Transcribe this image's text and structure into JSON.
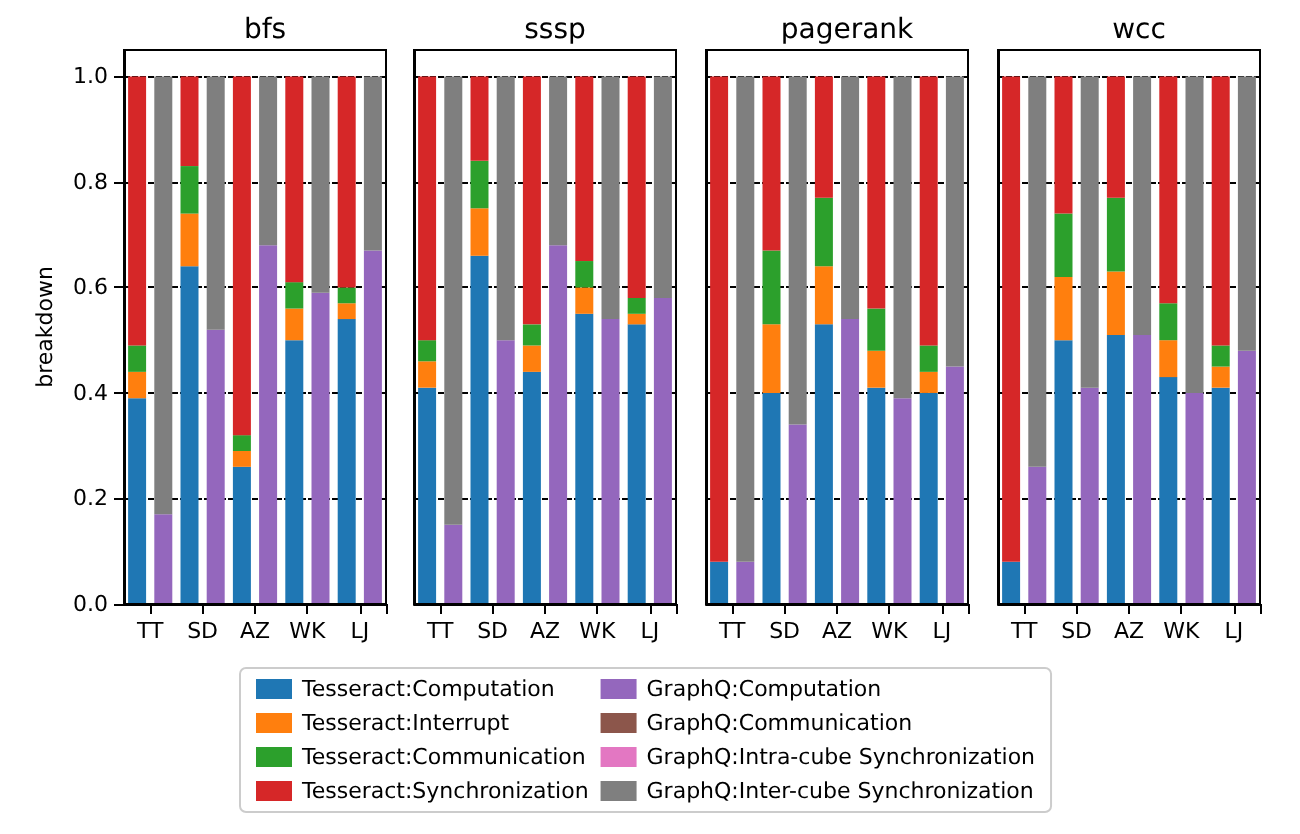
{
  "chart_data": [
    {
      "type": "bar",
      "title": "bfs",
      "ylabel": "breakdown",
      "stacked": true,
      "categories": [
        "TT",
        null,
        "SD",
        null,
        "AZ",
        null,
        "WK",
        null,
        "LJ",
        null
      ],
      "ylim": [
        0,
        1.05
      ],
      "yticks": [
        {
          "value": 0,
          "label": "0.0"
        },
        {
          "value": 0.2,
          "label": "0.2"
        },
        {
          "value": 0.4,
          "label": "0.4"
        },
        {
          "value": 0.6,
          "label": "0.6"
        },
        {
          "value": 0.8,
          "label": "0.8"
        },
        {
          "value": 1,
          "label": "1.0"
        }
      ],
      "grid": "y",
      "legend": "bottom",
      "series": [
        {
          "name": "Tesseract:Computation",
          "color": "#1f77b4",
          "values": [
            0.39,
            null,
            0.64,
            null,
            0.26,
            null,
            0.5,
            null,
            0.54,
            null
          ]
        },
        {
          "name": "Tesseract:Interrupt",
          "color": "#ff7f0e",
          "values": [
            0.05,
            null,
            0.1,
            null,
            0.03,
            null,
            0.06,
            null,
            0.03,
            null
          ]
        },
        {
          "name": "Tesseract:Communication",
          "color": "#2ca02c",
          "values": [
            0.05,
            null,
            0.09,
            null,
            0.03,
            null,
            0.05,
            null,
            0.03,
            null
          ]
        },
        {
          "name": "Tesseract:Synchronization",
          "color": "#d62728",
          "values": [
            0.51,
            null,
            0.17,
            null,
            0.68,
            null,
            0.39,
            null,
            0.4,
            null
          ]
        },
        {
          "name": "GraphQ:Computation",
          "color": "#9467bd",
          "values": [
            null,
            0.17,
            null,
            0.52,
            null,
            0.68,
            null,
            0.59,
            null,
            0.67
          ]
        },
        {
          "name": "GraphQ:Communication",
          "color": "#8c564b",
          "values": [
            null,
            0,
            null,
            0,
            null,
            0,
            null,
            0,
            null,
            0
          ]
        },
        {
          "name": "GraphQ:Intra-cube Synchronization",
          "color": "#e377c2",
          "values": [
            null,
            0,
            null,
            0,
            null,
            0,
            null,
            0,
            null,
            0
          ]
        },
        {
          "name": "GraphQ:Inter-cube Synchronization",
          "color": "#7f7f7f",
          "values": [
            null,
            0.83,
            null,
            0.48,
            null,
            0.32,
            null,
            0.41,
            null,
            0.33
          ]
        }
      ]
    },
    {
      "type": "bar",
      "title": "sssp",
      "stacked": true,
      "categories": [
        "TT",
        null,
        "SD",
        null,
        "AZ",
        null,
        "WK",
        null,
        "LJ",
        null
      ],
      "ylim": [
        0,
        1.05
      ],
      "yticks": [
        0,
        0.2,
        0.4,
        0.6,
        0.8,
        1
      ],
      "grid": "y",
      "tick_labels": "x",
      "series": [
        {
          "color": "#1f77b4",
          "values": [
            0.41,
            null,
            0.66,
            null,
            0.44,
            null,
            0.55,
            null,
            0.53,
            null
          ]
        },
        {
          "color": "#ff7f0e",
          "values": [
            0.05,
            null,
            0.09,
            null,
            0.05,
            null,
            0.05,
            null,
            0.02,
            null
          ]
        },
        {
          "color": "#2ca02c",
          "values": [
            0.04,
            null,
            0.09,
            null,
            0.04,
            null,
            0.05,
            null,
            0.03,
            null
          ]
        },
        {
          "color": "#d62728",
          "values": [
            0.5,
            null,
            0.16,
            null,
            0.47,
            null,
            0.35,
            null,
            0.42,
            null
          ]
        },
        {
          "color": "#9467bd",
          "values": [
            null,
            0.15,
            null,
            0.5,
            null,
            0.68,
            null,
            0.54,
            null,
            0.58
          ]
        },
        {
          "color": "#8c564b",
          "values": [
            null,
            0,
            null,
            0,
            null,
            0,
            null,
            0,
            null,
            0
          ]
        },
        {
          "color": "#e377c2",
          "values": [
            null,
            0,
            null,
            0,
            null,
            0,
            null,
            0,
            null,
            0
          ]
        },
        {
          "color": "#7f7f7f",
          "values": [
            null,
            0.85,
            null,
            0.5,
            null,
            0.32,
            null,
            0.46,
            null,
            0.42
          ]
        }
      ]
    },
    {
      "type": "bar",
      "title": "pagerank",
      "stacked": true,
      "categories": [
        "TT",
        null,
        "SD",
        null,
        "AZ",
        null,
        "WK",
        null,
        "LJ",
        null
      ],
      "ylim": [
        0,
        1.05
      ],
      "yticks": [
        0,
        0.2,
        0.4,
        0.6,
        0.8,
        1
      ],
      "grid": "y",
      "tick_labels": "x",
      "series": [
        {
          "color": "#1f77b4",
          "values": [
            0.08,
            null,
            0.4,
            null,
            0.53,
            null,
            0.41,
            null,
            0.4,
            null
          ]
        },
        {
          "color": "#ff7f0e",
          "values": [
            0,
            null,
            0.13,
            null,
            0.11,
            null,
            0.07,
            null,
            0.04,
            null
          ]
        },
        {
          "color": "#2ca02c",
          "values": [
            0,
            null,
            0.14,
            null,
            0.13,
            null,
            0.08,
            null,
            0.05,
            null
          ]
        },
        {
          "color": "#d62728",
          "values": [
            0.92,
            null,
            0.33,
            null,
            0.23,
            null,
            0.44,
            null,
            0.51,
            null
          ]
        },
        {
          "color": "#9467bd",
          "values": [
            null,
            0.08,
            null,
            0.34,
            null,
            0.54,
            null,
            0.39,
            null,
            0.45
          ]
        },
        {
          "color": "#8c564b",
          "values": [
            null,
            0,
            null,
            0,
            null,
            0,
            null,
            0,
            null,
            0
          ]
        },
        {
          "color": "#e377c2",
          "values": [
            null,
            0,
            null,
            0,
            null,
            0,
            null,
            0,
            null,
            0
          ]
        },
        {
          "color": "#7f7f7f",
          "values": [
            null,
            0.92,
            null,
            0.66,
            null,
            0.46,
            null,
            0.61,
            null,
            0.55
          ]
        }
      ]
    },
    {
      "type": "bar",
      "title": "wcc",
      "stacked": true,
      "categories": [
        "TT",
        null,
        "SD",
        null,
        "AZ",
        null,
        "WK",
        null,
        "LJ",
        null
      ],
      "ylim": [
        0,
        1.05
      ],
      "yticks": [
        0,
        0.2,
        0.4,
        0.6,
        0.8,
        1
      ],
      "grid": "y",
      "tick_labels": "x",
      "series": [
        {
          "color": "#1f77b4",
          "values": [
            0.08,
            null,
            0.5,
            null,
            0.51,
            null,
            0.43,
            null,
            0.41,
            null
          ]
        },
        {
          "color": "#ff7f0e",
          "values": [
            0,
            null,
            0.12,
            null,
            0.12,
            null,
            0.07,
            null,
            0.04,
            null
          ]
        },
        {
          "color": "#2ca02c",
          "values": [
            0,
            null,
            0.12,
            null,
            0.14,
            null,
            0.07,
            null,
            0.04,
            null
          ]
        },
        {
          "color": "#d62728",
          "values": [
            0.92,
            null,
            0.26,
            null,
            0.23,
            null,
            0.43,
            null,
            0.51,
            null
          ]
        },
        {
          "color": "#9467bd",
          "values": [
            null,
            0.26,
            null,
            0.41,
            null,
            0.51,
            null,
            0.4,
            null,
            0.48
          ]
        },
        {
          "color": "#8c564b",
          "values": [
            null,
            0,
            null,
            0,
            null,
            0,
            null,
            0,
            null,
            0
          ]
        },
        {
          "color": "#e377c2",
          "values": [
            null,
            0,
            null,
            0,
            null,
            0,
            null,
            0,
            null,
            0
          ]
        },
        {
          "color": "#7f7f7f",
          "values": [
            null,
            0.74,
            null,
            0.59,
            null,
            0.49,
            null,
            0.6,
            null,
            0.52
          ]
        }
      ]
    }
  ]
}
